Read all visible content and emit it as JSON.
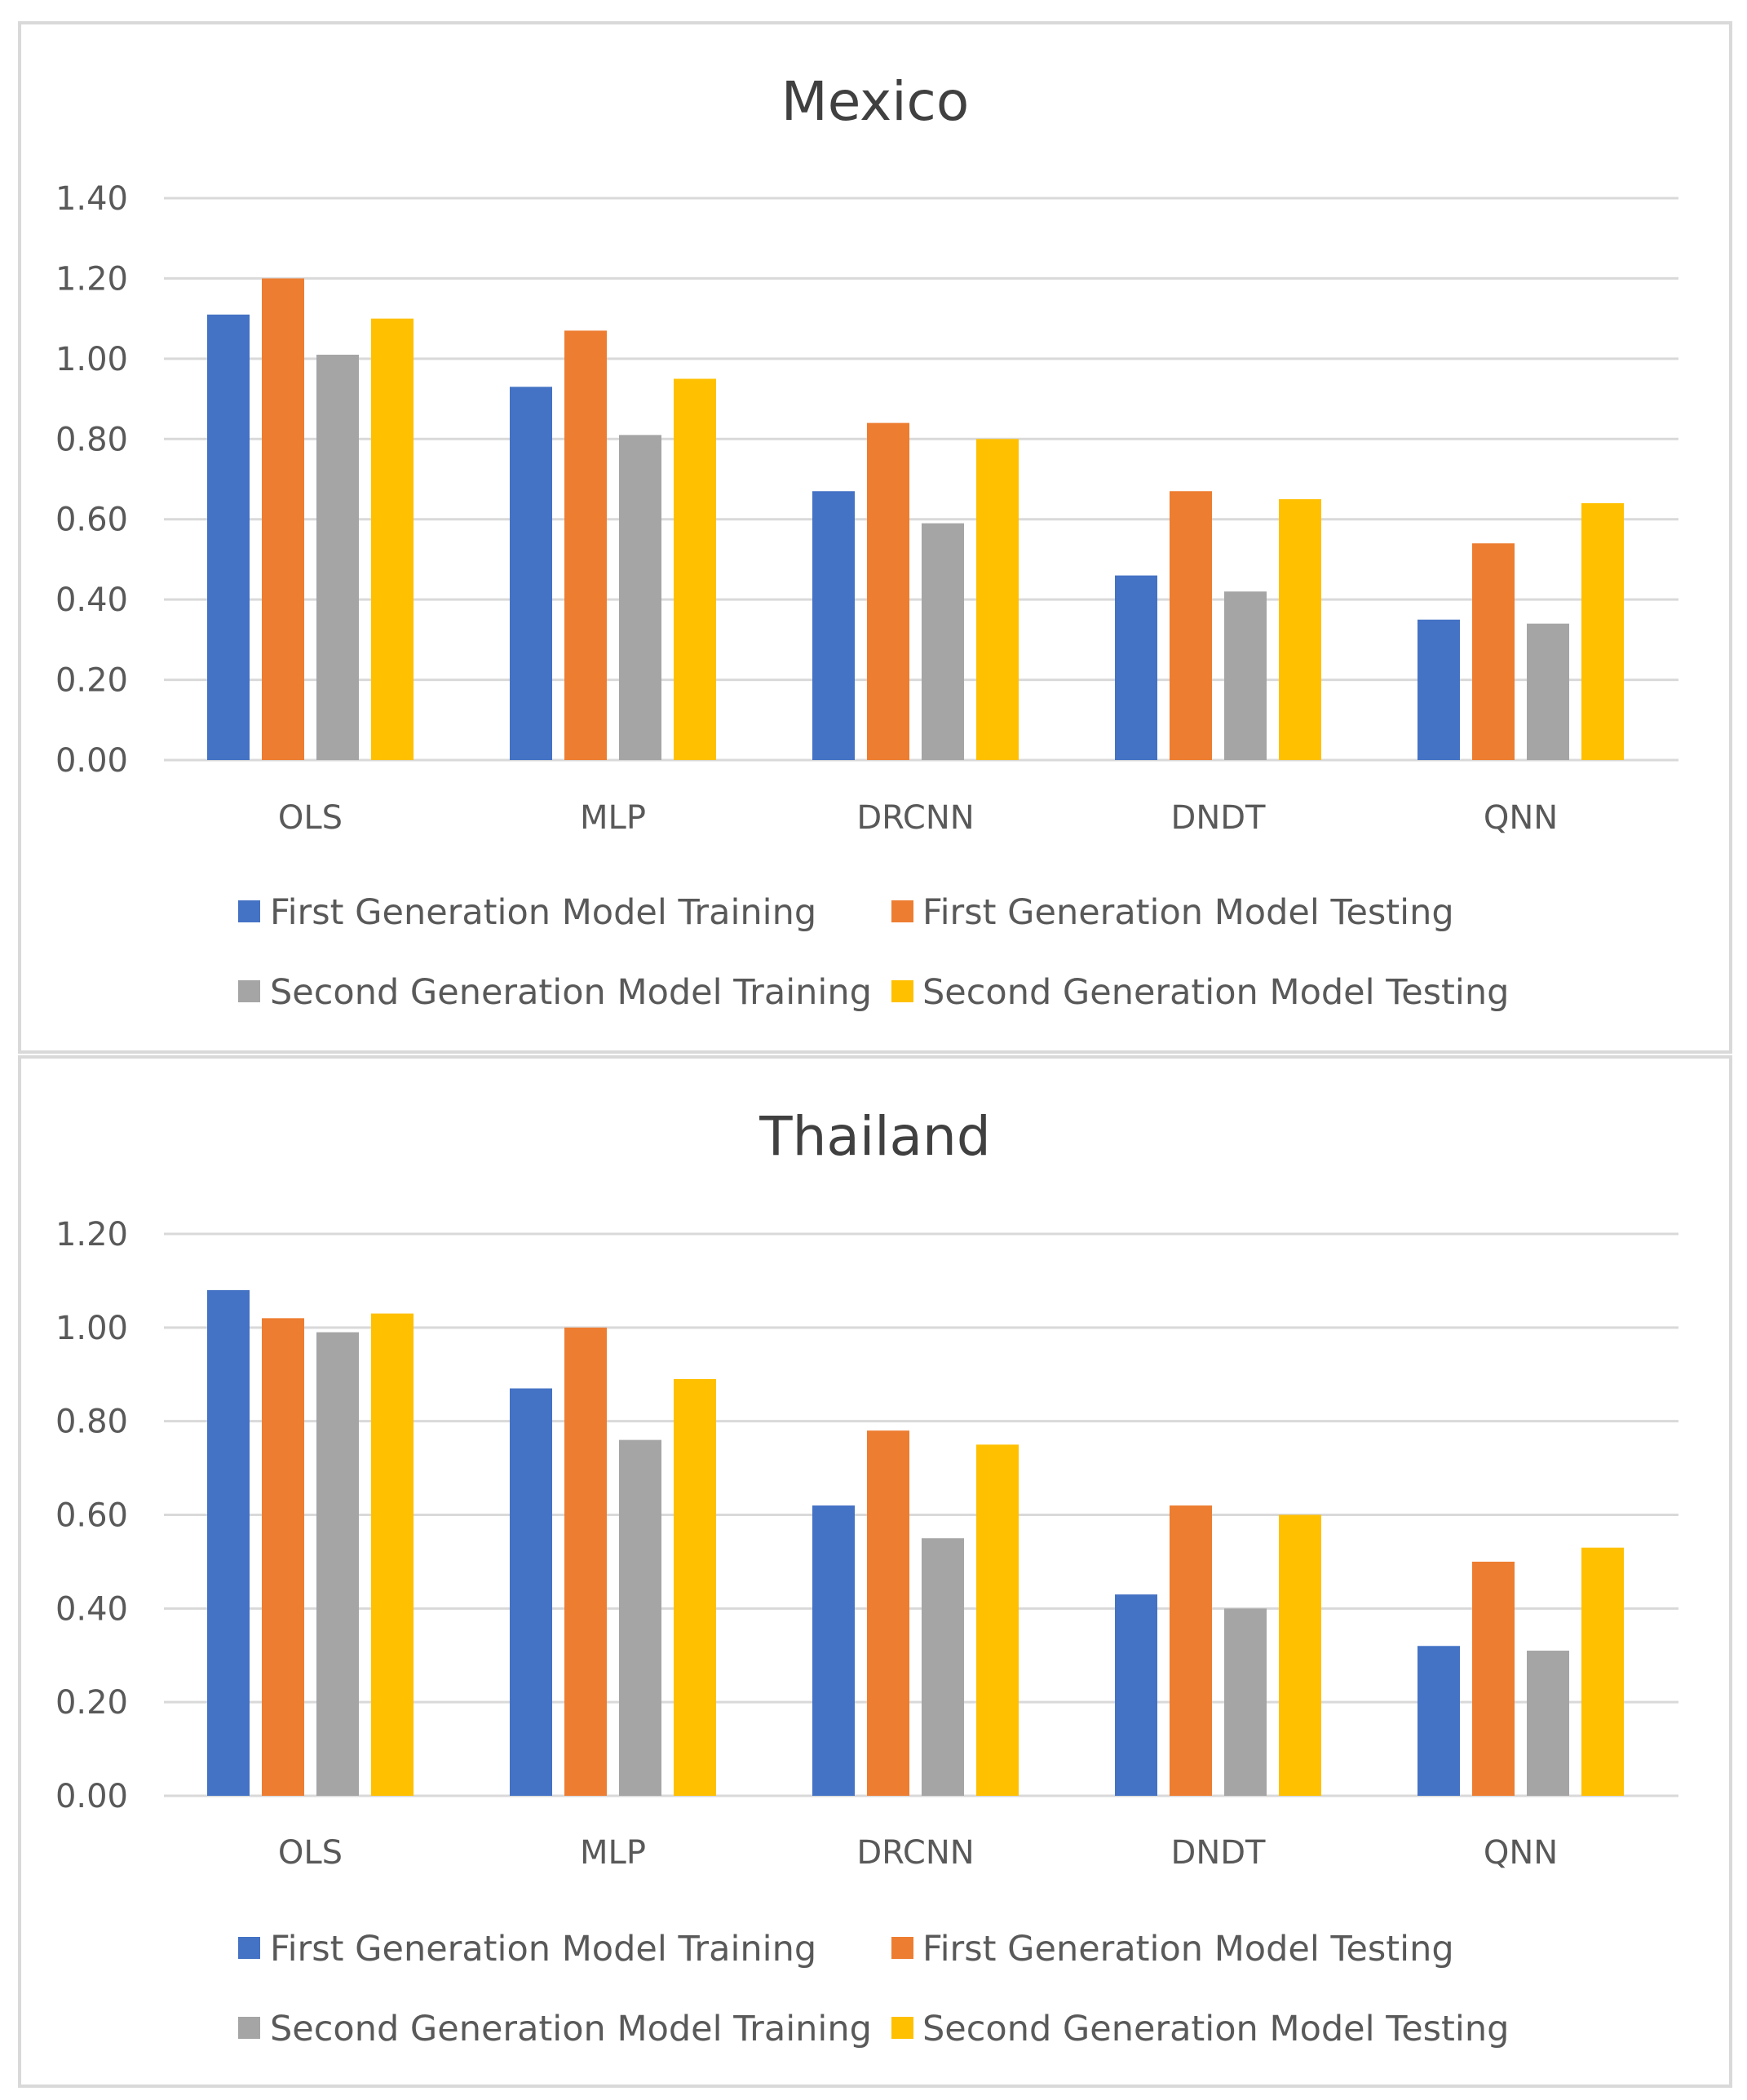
{
  "chart_data": [
    {
      "type": "bar",
      "title": "Mexico",
      "xlabel": "",
      "ylabel": "",
      "categories": [
        "OLS",
        "MLP",
        "DRCNN",
        "DNDT",
        "QNN"
      ],
      "ylim": [
        0,
        1.4
      ],
      "yticks": [
        "0.00",
        "0.20",
        "0.40",
        "0.60",
        "0.80",
        "1.00",
        "1.20",
        "1.40"
      ],
      "grid": true,
      "legend_position": "bottom",
      "series": [
        {
          "name": "First Generation Model Training",
          "color": "#4472c4",
          "values": [
            1.11,
            0.93,
            0.67,
            0.46,
            0.35
          ]
        },
        {
          "name": "First Generation Model Testing",
          "color": "#ed7d31",
          "values": [
            1.2,
            1.07,
            0.84,
            0.67,
            0.54
          ]
        },
        {
          "name": "Second Generation Model Training",
          "color": "#a5a5a5",
          "values": [
            1.01,
            0.81,
            0.59,
            0.42,
            0.34
          ]
        },
        {
          "name": "Second Generation Model Testing",
          "color": "#ffc000",
          "values": [
            1.1,
            0.95,
            0.8,
            0.65,
            0.64
          ]
        }
      ]
    },
    {
      "type": "bar",
      "title": "Thailand",
      "xlabel": "",
      "ylabel": "",
      "categories": [
        "OLS",
        "MLP",
        "DRCNN",
        "DNDT",
        "QNN"
      ],
      "ylim": [
        0,
        1.2
      ],
      "yticks": [
        "0.00",
        "0.20",
        "0.40",
        "0.60",
        "0.80",
        "1.00",
        "1.20"
      ],
      "grid": true,
      "legend_position": "bottom",
      "series": [
        {
          "name": "First Generation Model Training",
          "color": "#4472c4",
          "values": [
            1.08,
            0.87,
            0.62,
            0.43,
            0.32
          ]
        },
        {
          "name": "First Generation Model Testing",
          "color": "#ed7d31",
          "values": [
            1.02,
            1.0,
            0.78,
            0.62,
            0.5
          ]
        },
        {
          "name": "Second Generation Model Training",
          "color": "#a5a5a5",
          "values": [
            0.99,
            0.76,
            0.55,
            0.4,
            0.31
          ]
        },
        {
          "name": "Second Generation Model Testing",
          "color": "#ffc000",
          "values": [
            1.03,
            0.89,
            0.75,
            0.6,
            0.53
          ]
        }
      ]
    }
  ]
}
